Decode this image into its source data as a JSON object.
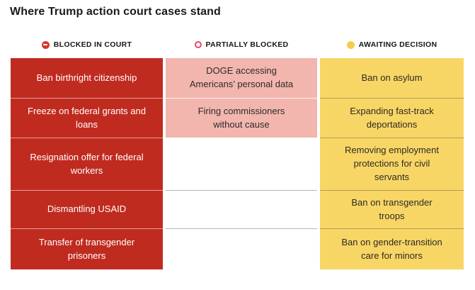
{
  "title": "Where Trump action court cases stand",
  "legend": {
    "blocked": "BLOCKED IN COURT",
    "partial": "PARTIALLY BLOCKED",
    "awaiting": "AWAITING DECISION"
  },
  "colors": {
    "blocked_cell": "#c02b20",
    "partial_cell": "#f2b6af",
    "awaiting_cell": "#f8d666",
    "blocked_icon": "#d6372c",
    "partial_icon": "#e8486c",
    "awaiting_icon": "#f5cd4e"
  },
  "chart_data": {
    "type": "table",
    "title": "Where Trump action court cases stand",
    "columns": [
      "Blocked in court",
      "Partially blocked",
      "Awaiting decision"
    ],
    "rows": [
      {
        "blocked": "Ban birthright citizenship",
        "partial": "DOGE accessing Americans’ personal data",
        "awaiting": "Ban on asylum"
      },
      {
        "blocked": "Freeze on federal grants and loans",
        "partial": "Firing commissioners without cause",
        "awaiting": "Expanding fast-track deportations"
      },
      {
        "blocked": "Resignation offer for federal workers",
        "partial": "",
        "awaiting": "Removing employment protections for civil servants"
      },
      {
        "blocked": "Dismantling USAID",
        "partial": "",
        "awaiting": "Ban on transgender troops"
      },
      {
        "blocked": "Transfer of transgender prisoners",
        "partial": "",
        "awaiting": "Ban on gender-transition care for minors"
      }
    ]
  }
}
